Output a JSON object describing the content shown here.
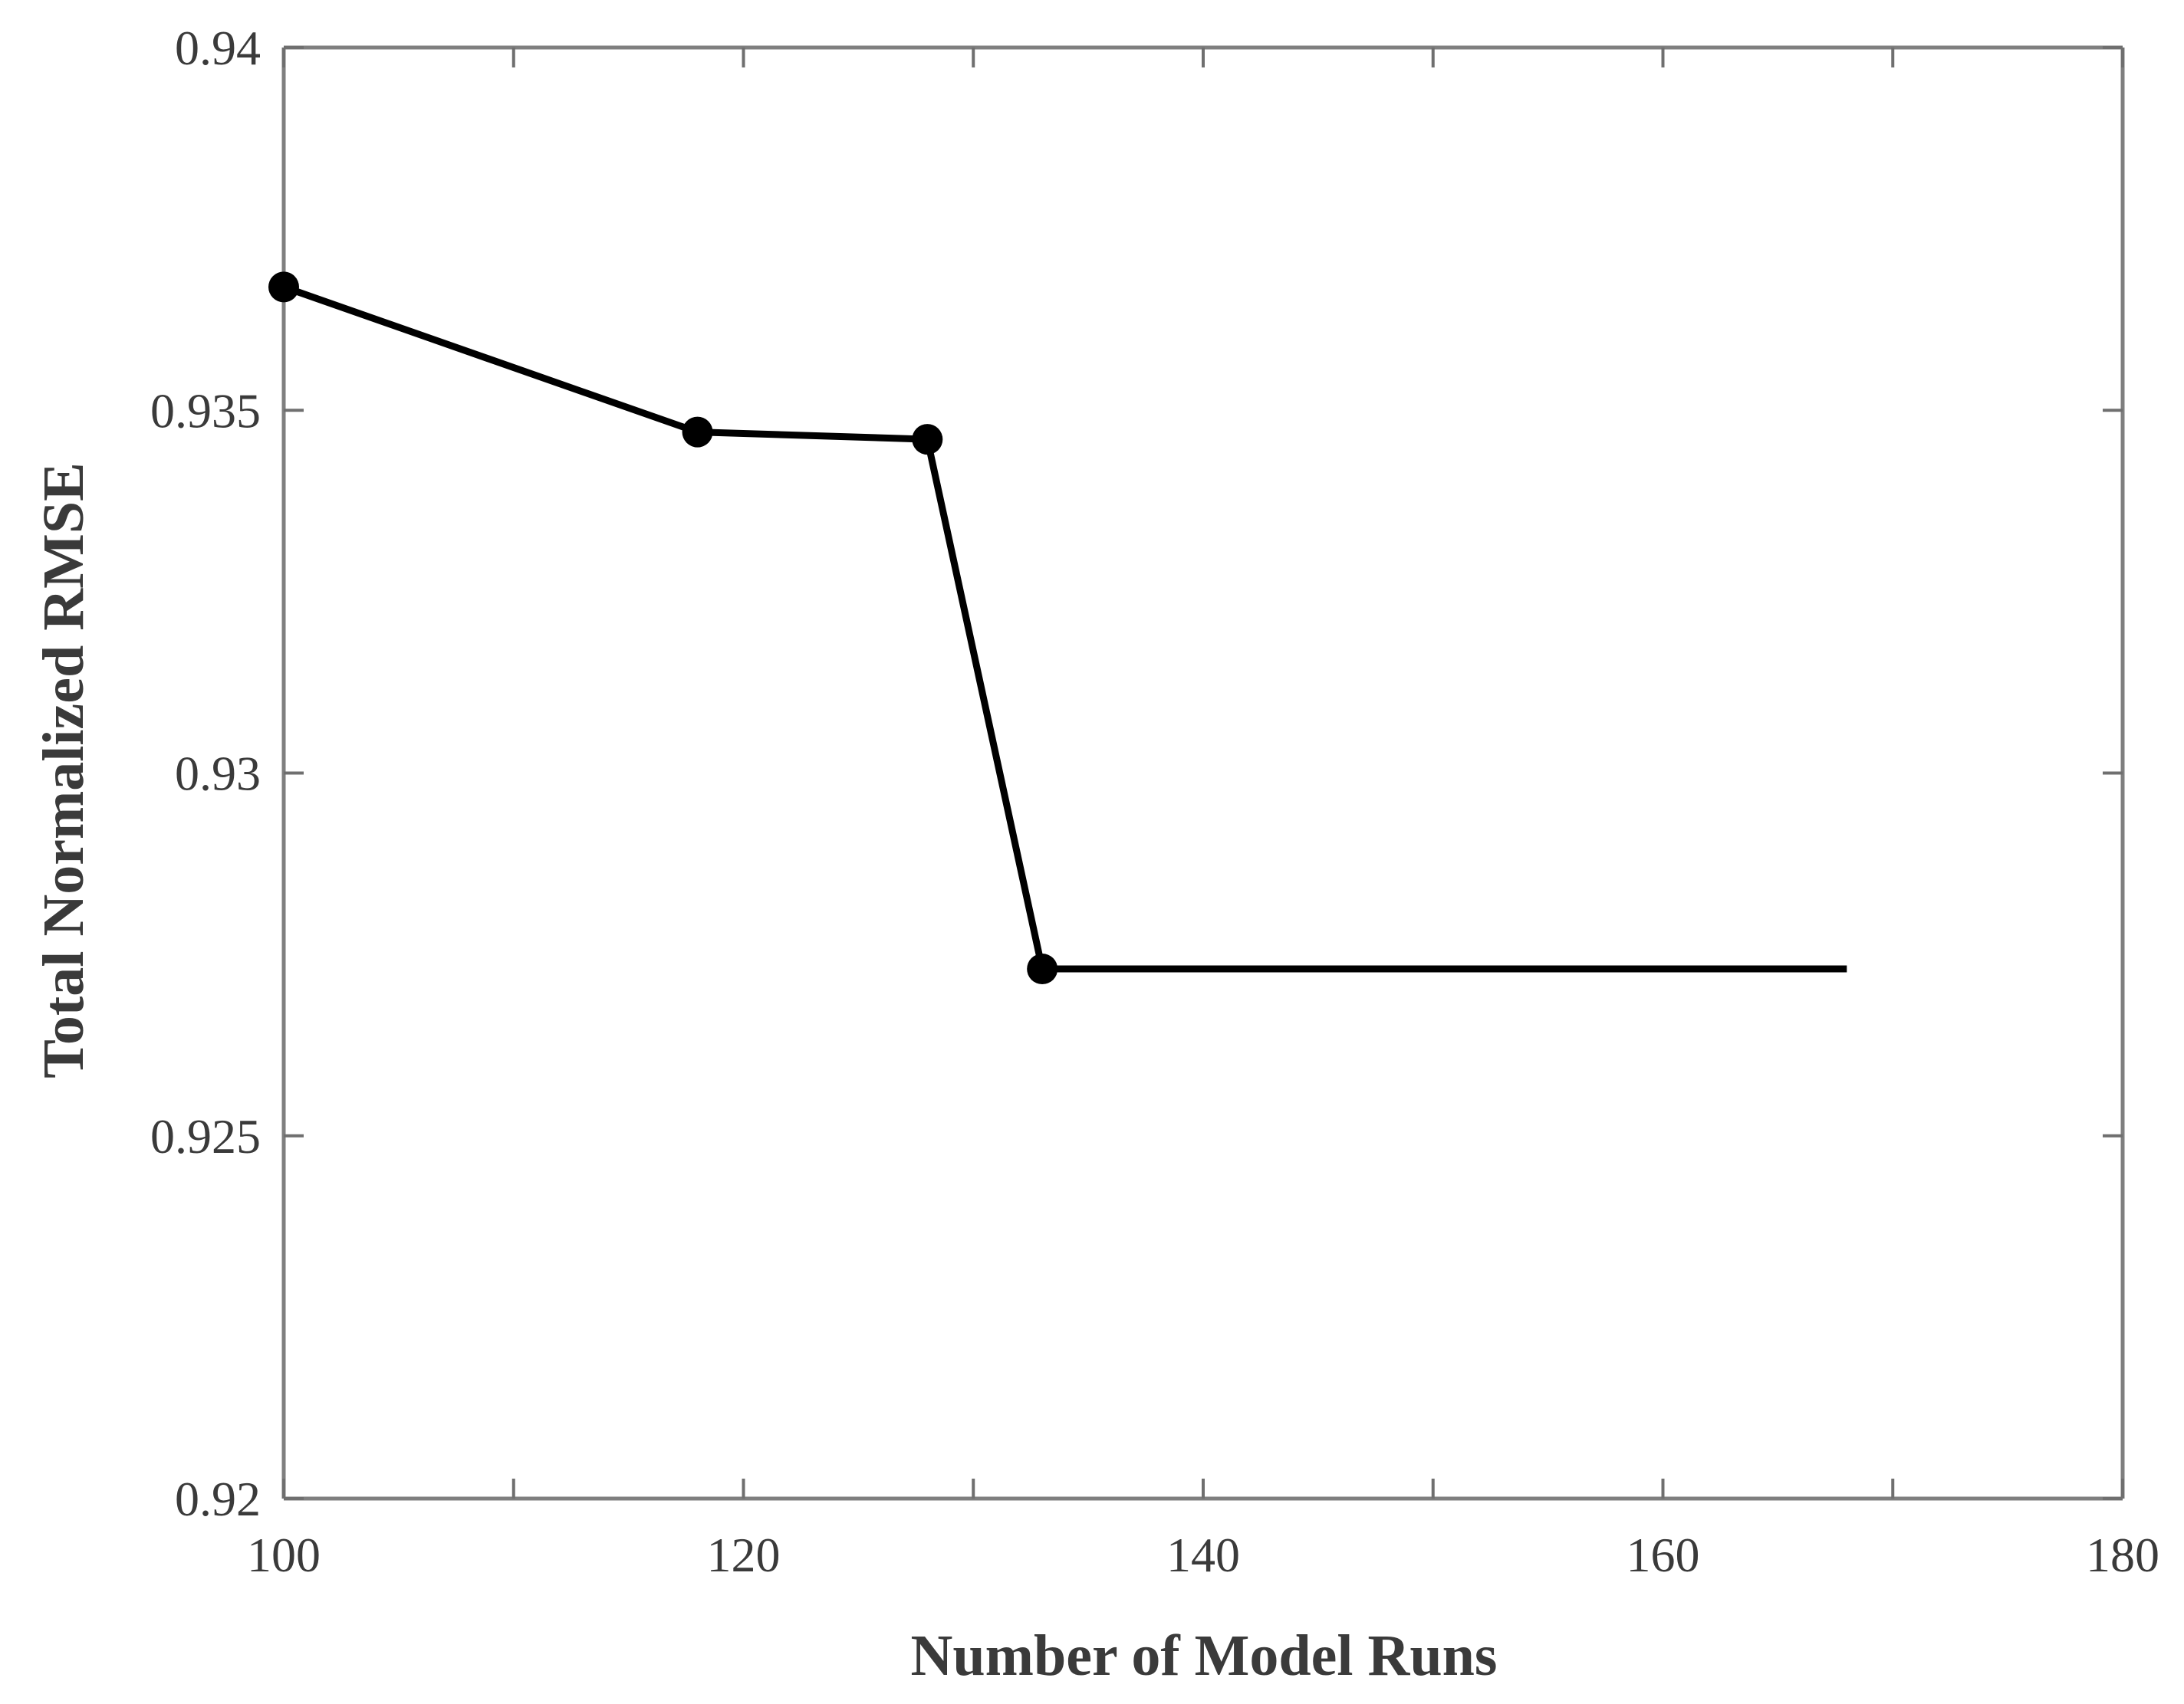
{
  "chart_data": {
    "type": "line",
    "title": "",
    "xlabel": "Number of Model Runs",
    "ylabel": "Total Normalized RMSE",
    "xlim": [
      100,
      180
    ],
    "ylim": [
      0.92,
      0.94
    ],
    "x_ticks": [
      100,
      120,
      140,
      160,
      180
    ],
    "x_tick_labels": [
      "100",
      "120",
      "140",
      "160",
      "180"
    ],
    "y_ticks": [
      0.92,
      0.925,
      0.93,
      0.935,
      0.94
    ],
    "y_tick_labels": [
      "0.92",
      "0.925",
      "0.93",
      "0.935",
      "0.94"
    ],
    "x_minor_ticks": [
      110,
      130,
      150,
      170
    ],
    "grid": false,
    "series": [
      {
        "x": [
          100,
          118,
          128,
          133,
          168
        ],
        "y": [
          0.9367,
          0.9347,
          0.9346,
          0.9273,
          0.9273
        ],
        "markers": [
          true,
          true,
          true,
          true,
          false
        ],
        "color": "#000000"
      }
    ]
  }
}
